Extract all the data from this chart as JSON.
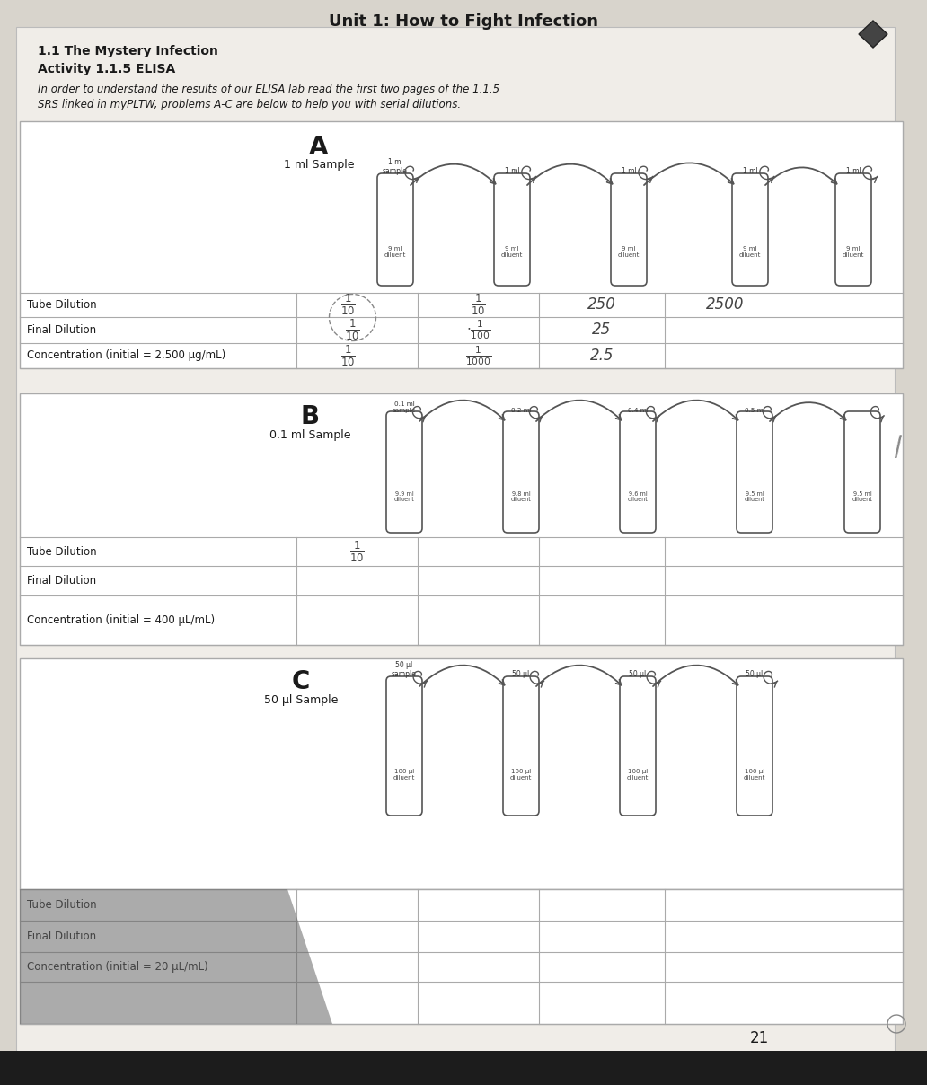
{
  "title": "Unit 1: How to Fight Infection",
  "subtitle1": "1.1 The Mystery Infection",
  "subtitle2": "Activity 1.1.5 ELISA",
  "body_text_line1": "In order to understand the results of our ELISA lab read the first two pages of the 1.1.5",
  "body_text_line2": "SRS linked in myPLTW, problems A-C are below to help you with serial dilutions.",
  "section_A_label": "A",
  "section_A_sample": "1 ml Sample",
  "section_B_label": "B",
  "section_B_sample": "0.1 ml Sample",
  "section_C_label": "C",
  "section_C_sample": "50 μl Sample",
  "table_A_rows": [
    "Tube Dilution",
    "Final Dilution",
    "Concentration (initial = 2,500 μg/mL)"
  ],
  "table_B_rows": [
    "Tube Dilution",
    "Final Dilution",
    "Concentration (initial = 400 μL/mL)"
  ],
  "table_C_rows": [
    "Tube Dilution",
    "Final Dilution",
    "Concentration (initial = 20 μL/mL)"
  ],
  "page_number": "21",
  "bg_color": "#d8d4cc",
  "paper_color": "#f0ede8",
  "line_color": "#aaaaaa",
  "text_color": "#1a1a1a",
  "hand_color": "#444444",
  "tube_edge": "#555555",
  "shadow_color": "#555555"
}
